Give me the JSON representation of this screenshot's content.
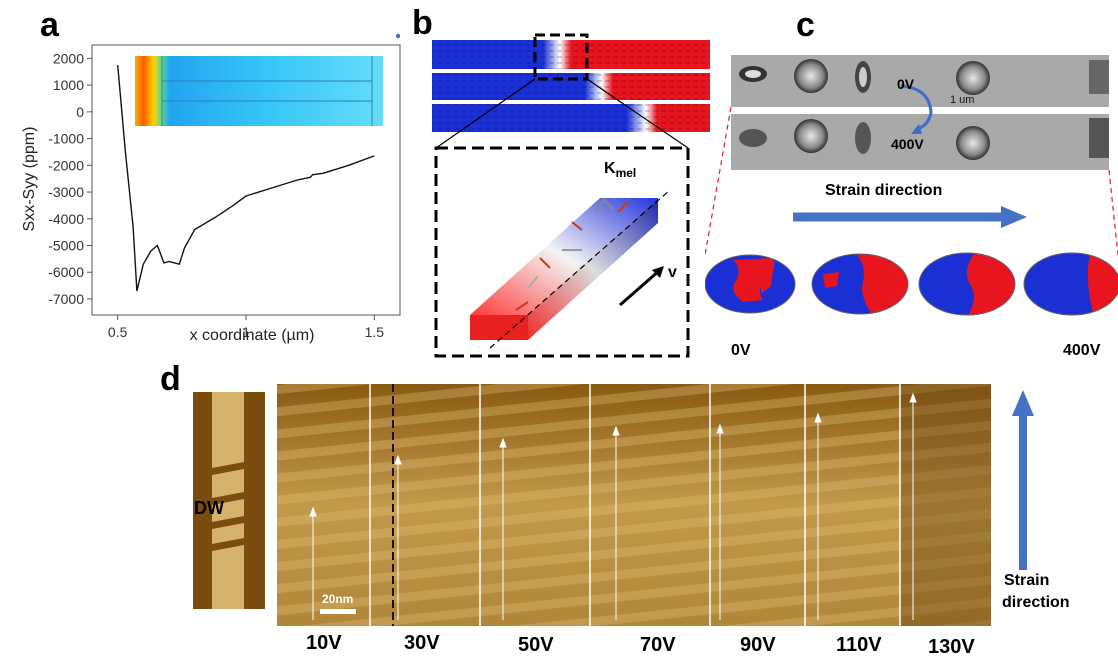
{
  "panels": {
    "a": {
      "letter": "a",
      "chart_data": {
        "type": "line",
        "xlabel": "x coordinate (µm)",
        "ylabel": "Sxx-Syy (ppm)",
        "xlim": [
          0.4,
          1.6
        ],
        "ylim": [
          -7600,
          2500
        ],
        "xticks": [
          "0.5",
          "1",
          "1.5"
        ],
        "yticks": [
          "2000",
          "1000",
          "0",
          "-1000",
          "-2000",
          "-3000",
          "-4000",
          "-5000",
          "-6000",
          "-7000"
        ],
        "series": [
          {
            "x": [
              0.5,
              0.53,
              0.56,
              0.575,
              0.6,
              0.63,
              0.655,
              0.68,
              0.7,
              0.74,
              0.76,
              0.8,
              0.88,
              0.95,
              1.0,
              1.1,
              1.2,
              1.25,
              1.26,
              1.3,
              1.4,
              1.5
            ],
            "y": [
              1750,
              -1500,
              -4300,
              -6700,
              -5700,
              -5200,
              -5000,
              -5650,
              -5600,
              -5700,
              -5100,
              -4400,
              -3950,
              -3500,
              -3150,
              -2850,
              -2550,
              -2450,
              -2350,
              -2300,
              -2000,
              -1650
            ]
          }
        ],
        "grid": false
      }
    },
    "b": {
      "letter": "b",
      "kmel_main": "K",
      "kmel_sub": "mel",
      "v_label": "v"
    },
    "c": {
      "letter": "c",
      "voltage_top": "0V",
      "scale_label": "1 um",
      "voltage_bottom": "400V",
      "strain_label": "Strain direction",
      "sim_left_label": "0V",
      "sim_right_label": "400V"
    },
    "d": {
      "letter": "d",
      "dw_label": "DW",
      "scale_bar_label": "20nm",
      "voltages": [
        "10V",
        "30V",
        "50V",
        "70V",
        "90V",
        "110V",
        "130V"
      ],
      "strain_label_line1": "Strain",
      "strain_label_line2": "direction"
    }
  },
  "colors": {
    "blue_domain": "#1a2fd4",
    "red_domain": "#e8141e",
    "afm_dark": "#7a4c0d",
    "afm_light": "#d6b36b",
    "arrow_blue": "#4472c4"
  }
}
